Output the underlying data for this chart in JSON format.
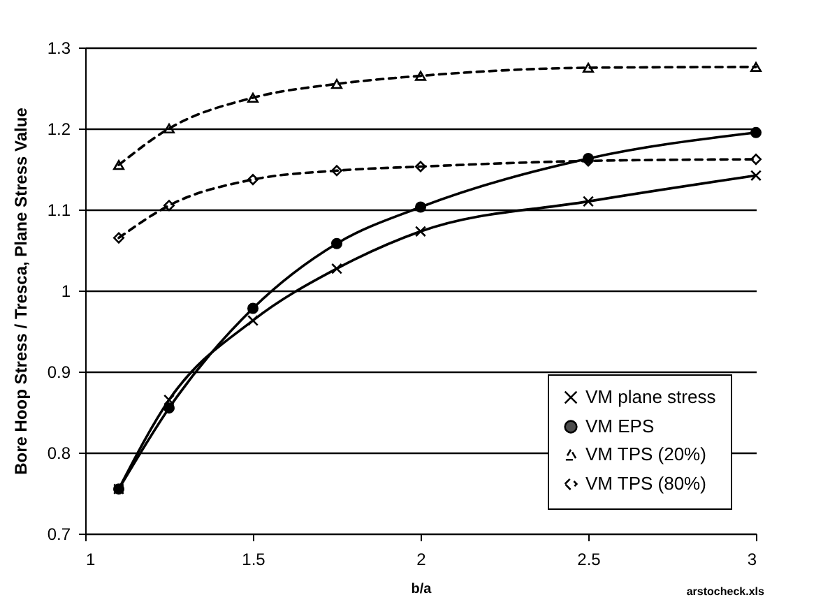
{
  "chart_data": {
    "type": "line",
    "xlabel": "b/a",
    "ylabel": "Bore Hoop Stress / Tresca, Plane Stress Value",
    "x": [
      1.1,
      1.25,
      1.5,
      1.75,
      2,
      2.5,
      3
    ],
    "series": [
      {
        "name": "VM plane stress",
        "color": "#000000",
        "marker": "cross",
        "line_style": "solid",
        "values": [
          0.755,
          0.865,
          0.963,
          1.027,
          1.073,
          1.11,
          1.142
        ]
      },
      {
        "name": "VM EPS",
        "color": "#000000",
        "marker": "circle",
        "line_style": "solid",
        "values": [
          0.755,
          0.855,
          0.978,
          1.058,
          1.103,
          1.163,
          1.195
        ]
      },
      {
        "name": "VM TPS (20%)",
        "color": "#000000",
        "marker": "triangle",
        "line_style": "dashed",
        "values": [
          1.155,
          1.2,
          1.238,
          1.255,
          1.265,
          1.275,
          1.276
        ]
      },
      {
        "name": "VM TPS (80%)",
        "color": "#000000",
        "marker": "diamond",
        "line_style": "dashed",
        "values": [
          1.065,
          1.105,
          1.137,
          1.148,
          1.153,
          1.16,
          1.162
        ]
      }
    ],
    "xlim": [
      1,
      3
    ],
    "xticks": [
      1,
      1.5,
      2,
      2.5,
      3
    ],
    "ylim": [
      0.7,
      1.3
    ],
    "yticks": [
      0.7,
      0.8,
      0.9,
      1,
      1.1,
      1.2,
      1.3
    ],
    "grid": "y",
    "legend": "bottom right",
    "annotations": [
      "arstocheck.xls"
    ]
  }
}
